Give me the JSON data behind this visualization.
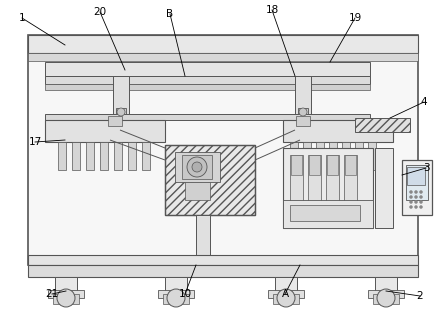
{
  "bg_color": "#ffffff",
  "line_color": "#555555",
  "gray1": "#f0f0f0",
  "gray2": "#e0e0e0",
  "gray3": "#cccccc",
  "gray4": "#b0b0b0",
  "gray5": "#909090"
}
